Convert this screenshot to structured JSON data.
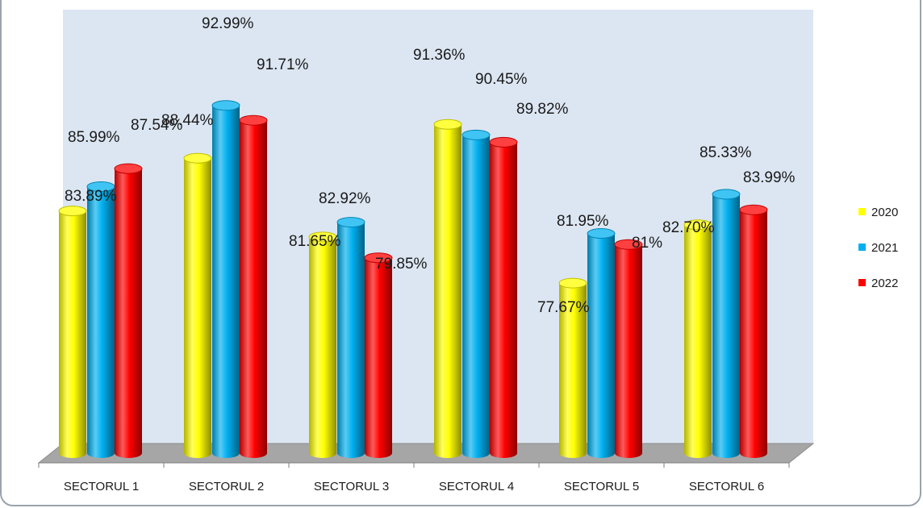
{
  "chart_data": {
    "type": "bar",
    "style": "3d-cylinder",
    "categories": [
      "SECTORUL 1",
      "SECTORUL 2",
      "SECTORUL 3",
      "SECTORUL 4",
      "SECTORUL 5",
      "SECTORUL 6"
    ],
    "series": [
      {
        "name": "2020",
        "color": "#ffff00",
        "values": [
          83.89,
          88.44,
          81.65,
          91.36,
          77.67,
          82.7
        ],
        "labels": [
          "83.89%",
          "88.44%",
          "81.65%",
          "91.36%",
          "77.67%",
          "82.70%"
        ]
      },
      {
        "name": "2021",
        "color": "#00b0f0",
        "values": [
          85.99,
          92.99,
          82.92,
          90.45,
          81.95,
          85.33
        ],
        "labels": [
          "85.99%",
          "92.99%",
          "82.92%",
          "90.45%",
          "81.95%",
          "85.33%"
        ]
      },
      {
        "name": "2022",
        "color": "#ff0000",
        "values": [
          87.54,
          91.71,
          79.85,
          89.82,
          81.0,
          83.99
        ],
        "labels": [
          "87.54%",
          "91.71%",
          "79.85%",
          "89.82%",
          "81%",
          "83.99%"
        ]
      }
    ],
    "ylim": [
      63,
      100
    ],
    "grid": false,
    "legend_position": "right",
    "plot_background": "#dce6f2",
    "floor_color": "#a6a6a6"
  }
}
